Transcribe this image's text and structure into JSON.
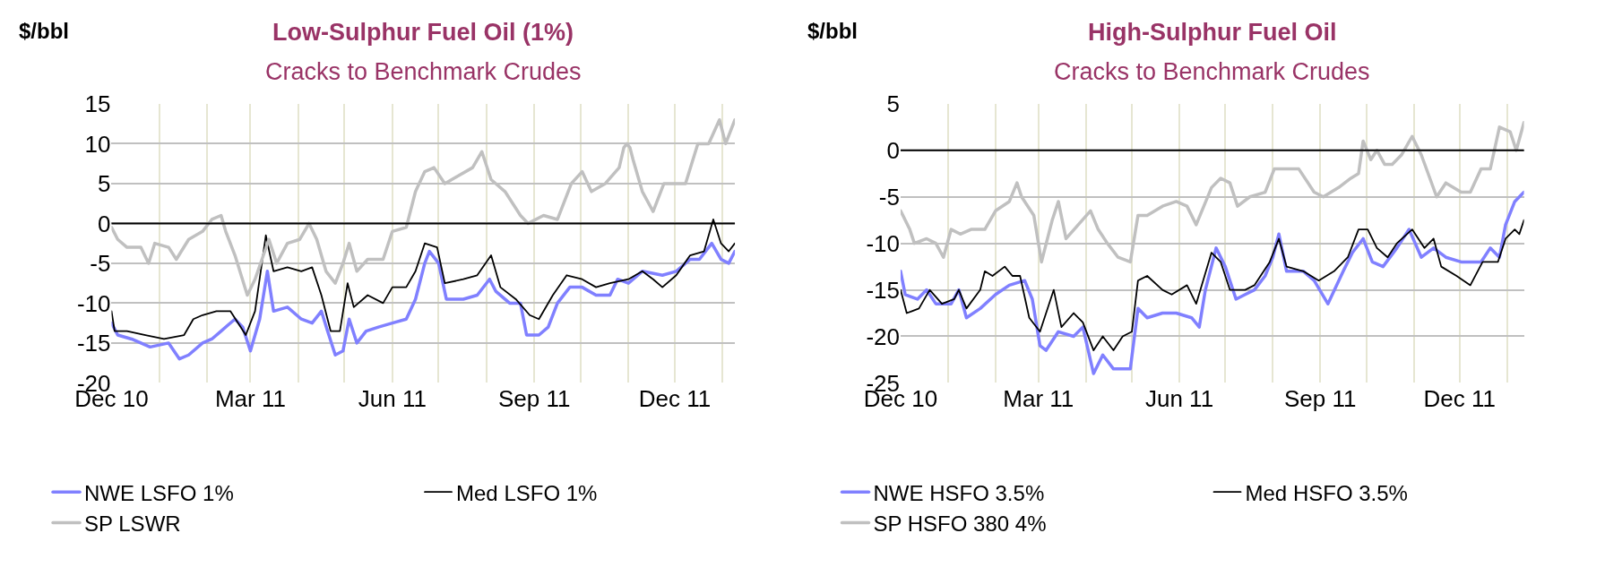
{
  "chart_data": [
    {
      "type": "line",
      "title": "Low-Sulphur Fuel Oil (1%)",
      "subtitle": "Cracks to Benchmark Crudes",
      "ylabel": "$/bbl",
      "xlim": [
        "2010-12-01",
        "2012-01-09"
      ],
      "xticks": [
        {
          "value": "2010-12-01",
          "label": "Dec 10"
        },
        {
          "value": "2011-01-01",
          "label": null
        },
        {
          "value": "2011-02-01",
          "label": null
        },
        {
          "value": "2011-03-01",
          "label": "Mar 11"
        },
        {
          "value": "2011-04-01",
          "label": null
        },
        {
          "value": "2011-05-01",
          "label": null
        },
        {
          "value": "2011-06-01",
          "label": "Jun 11"
        },
        {
          "value": "2011-07-01",
          "label": null
        },
        {
          "value": "2011-08-01",
          "label": null
        },
        {
          "value": "2011-09-01",
          "label": "Sep 11"
        },
        {
          "value": "2011-10-01",
          "label": null
        },
        {
          "value": "2011-11-01",
          "label": null
        },
        {
          "value": "2011-12-01",
          "label": "Dec 11"
        },
        {
          "value": "2012-01-01",
          "label": null
        }
      ],
      "ylim": [
        -20,
        15
      ],
      "yticks": [
        -20,
        -15,
        -10,
        -5,
        0,
        5,
        10,
        15
      ],
      "grid": true,
      "legend": "bottom",
      "ref_lines": [
        {
          "axis": "y",
          "value": 0,
          "color": "#000000"
        }
      ],
      "series": [
        {
          "name": "NWE LSFO 1%",
          "color": "#8080ff",
          "x": [
            "2010-12-01",
            "2010-12-05",
            "2010-12-14",
            "2010-12-26",
            "2011-01-07",
            "2011-01-14",
            "2011-01-20",
            "2011-01-29",
            "2011-02-04",
            "2011-02-10",
            "2011-02-19",
            "2011-02-24",
            "2011-03-01",
            "2011-03-07",
            "2011-03-12",
            "2011-03-16",
            "2011-03-25",
            "2011-04-03",
            "2011-04-10",
            "2011-04-16",
            "2011-04-20",
            "2011-04-25",
            "2011-04-30",
            "2011-05-04",
            "2011-05-09",
            "2011-05-15",
            "2011-05-23",
            "2011-06-01",
            "2011-06-10",
            "2011-06-16",
            "2011-06-22",
            "2011-06-25",
            "2011-07-01",
            "2011-07-06",
            "2011-07-17",
            "2011-07-26",
            "2011-08-03",
            "2011-08-07",
            "2011-08-16",
            "2011-08-23",
            "2011-08-27",
            "2011-09-04",
            "2011-09-10",
            "2011-09-16",
            "2011-09-24",
            "2011-10-02",
            "2011-10-11",
            "2011-10-20",
            "2011-10-25",
            "2011-11-01",
            "2011-11-10",
            "2011-11-23",
            "2011-12-02",
            "2011-12-11",
            "2011-12-17",
            "2011-12-25",
            "2011-12-31",
            "2012-01-05",
            "2012-01-09"
          ],
          "values": [
            -12.5,
            -14,
            -14.5,
            -15.5,
            -15,
            -17,
            -16.5,
            -15,
            -14.5,
            -13.5,
            -12,
            -13,
            -16,
            -12,
            -6,
            -11,
            -10.5,
            -12,
            -12.5,
            -11,
            -13.5,
            -16.5,
            -16,
            -12,
            -15,
            -13.5,
            -13,
            -12.5,
            -12,
            -9.5,
            -5,
            -3.5,
            -5,
            -9.5,
            -9.5,
            -9,
            -7,
            -8.5,
            -10,
            -10,
            -14,
            -14,
            -13,
            -10,
            -8,
            -8,
            -9,
            -9,
            -7,
            -7.5,
            -6,
            -6.5,
            -6,
            -4.5,
            -4.5,
            -2.5,
            -4.5,
            -5,
            -3.5
          ]
        },
        {
          "name": "Med LSFO 1%",
          "color": "#000000",
          "x": [
            "2010-12-01",
            "2010-12-03",
            "2010-12-11",
            "2010-12-23",
            "2011-01-04",
            "2011-01-17",
            "2011-01-23",
            "2011-01-29",
            "2011-02-07",
            "2011-02-16",
            "2011-02-26",
            "2011-03-04",
            "2011-03-11",
            "2011-03-16",
            "2011-03-25",
            "2011-04-03",
            "2011-04-10",
            "2011-04-16",
            "2011-04-22",
            "2011-04-28",
            "2011-05-03",
            "2011-05-07",
            "2011-05-16",
            "2011-05-26",
            "2011-06-01",
            "2011-06-10",
            "2011-06-16",
            "2011-06-22",
            "2011-06-30",
            "2011-07-05",
            "2011-07-17",
            "2011-07-26",
            "2011-08-04",
            "2011-08-10",
            "2011-08-20",
            "2011-08-29",
            "2011-09-04",
            "2011-09-13",
            "2011-09-22",
            "2011-10-02",
            "2011-10-11",
            "2011-10-20",
            "2011-11-01",
            "2011-11-10",
            "2011-11-17",
            "2011-11-23",
            "2011-12-02",
            "2011-12-11",
            "2011-12-20",
            "2011-12-26",
            "2011-12-31",
            "2012-01-05",
            "2012-01-09"
          ],
          "values": [
            -11,
            -13.5,
            -13.5,
            -14,
            -14.5,
            -14,
            -12,
            -11.5,
            -11,
            -11,
            -14,
            -11,
            -1.5,
            -6,
            -5.5,
            -6,
            -5.5,
            -9,
            -13.5,
            -13.5,
            -7.5,
            -10.5,
            -9,
            -10,
            -8,
            -8,
            -6,
            -2.5,
            -3,
            -7.5,
            -7,
            -6.5,
            -4,
            -8,
            -9.5,
            -11.5,
            -12,
            -9,
            -6.5,
            -7,
            -8,
            -7.5,
            -7,
            -6,
            -7,
            -8,
            -6.5,
            -4,
            -3.5,
            0.5,
            -2.5,
            -3.5,
            -2.5
          ]
        },
        {
          "name": "SP LSWR",
          "color": "#c0c0c0",
          "x": [
            "2010-12-01",
            "2010-12-05",
            "2010-12-11",
            "2010-12-20",
            "2010-12-25",
            "2010-12-29",
            "2011-01-07",
            "2011-01-12",
            "2011-01-20",
            "2011-01-29",
            "2011-02-04",
            "2011-02-10",
            "2011-02-13",
            "2011-02-19",
            "2011-02-27",
            "2011-03-04",
            "2011-03-13",
            "2011-03-18",
            "2011-03-25",
            "2011-04-02",
            "2011-04-08",
            "2011-04-13",
            "2011-04-19",
            "2011-04-25",
            "2011-04-30",
            "2011-05-04",
            "2011-05-09",
            "2011-05-16",
            "2011-05-26",
            "2011-06-01",
            "2011-06-10",
            "2011-06-16",
            "2011-06-22",
            "2011-06-28",
            "2011-07-05",
            "2011-07-14",
            "2011-07-23",
            "2011-07-29",
            "2011-08-04",
            "2011-08-13",
            "2011-08-23",
            "2011-08-28",
            "2011-09-07",
            "2011-09-16",
            "2011-09-25",
            "2011-10-02",
            "2011-10-08",
            "2011-10-17",
            "2011-10-26",
            "2011-10-29",
            "2011-10-31",
            "2011-11-02",
            "2011-11-04",
            "2011-11-10",
            "2011-11-17",
            "2011-11-24",
            "2011-12-02",
            "2011-12-08",
            "2011-12-16",
            "2011-12-23",
            "2011-12-30",
            "2012-01-03",
            "2012-01-09"
          ],
          "values": [
            -0.5,
            -2,
            -3,
            -3,
            -5,
            -2.5,
            -3,
            -4.5,
            -2,
            -1,
            0.5,
            1,
            -1,
            -4,
            -9,
            -7,
            -2,
            -5,
            -2.5,
            -2,
            0,
            -2,
            -6,
            -7.5,
            -5,
            -2.5,
            -6,
            -4.5,
            -4.5,
            -1,
            -0.5,
            4,
            6.5,
            7,
            5,
            6,
            7,
            9,
            5.5,
            4,
            1,
            0,
            1,
            0.5,
            5,
            6.5,
            4,
            5,
            7,
            9.5,
            10,
            9.5,
            8,
            4,
            1.5,
            5,
            5,
            5,
            10,
            10,
            13,
            10,
            13
          ]
        }
      ]
    },
    {
      "type": "line",
      "title": "High-Sulphur Fuel Oil",
      "subtitle": "Cracks to Benchmark Crudes",
      "ylabel": "$/bbl",
      "xlim": [
        "2010-12-01",
        "2012-01-12"
      ],
      "xticks": [
        {
          "value": "2010-12-01",
          "label": "Dec 10"
        },
        {
          "value": "2011-01-01",
          "label": null
        },
        {
          "value": "2011-02-01",
          "label": null
        },
        {
          "value": "2011-03-01",
          "label": "Mar 11"
        },
        {
          "value": "2011-04-01",
          "label": null
        },
        {
          "value": "2011-05-01",
          "label": null
        },
        {
          "value": "2011-06-01",
          "label": "Jun 11"
        },
        {
          "value": "2011-07-01",
          "label": null
        },
        {
          "value": "2011-08-01",
          "label": null
        },
        {
          "value": "2011-09-01",
          "label": "Sep 11"
        },
        {
          "value": "2011-10-01",
          "label": null
        },
        {
          "value": "2011-11-01",
          "label": null
        },
        {
          "value": "2011-12-01",
          "label": "Dec 11"
        },
        {
          "value": "2012-01-01",
          "label": null
        }
      ],
      "ylim": [
        -25,
        5
      ],
      "yticks": [
        -25,
        -20,
        -15,
        -10,
        -5,
        0,
        5
      ],
      "grid": true,
      "legend": "bottom",
      "ref_lines": [
        {
          "axis": "y",
          "value": 0,
          "color": "#000000"
        }
      ],
      "series": [
        {
          "name": "NWE HSFO 3.5%",
          "color": "#8080ff",
          "x": [
            "2010-12-01",
            "2010-12-04",
            "2010-12-12",
            "2010-12-18",
            "2010-12-24",
            "2011-01-03",
            "2011-01-08",
            "2011-01-13",
            "2011-01-22",
            "2011-02-01",
            "2011-02-10",
            "2011-02-20",
            "2011-02-25",
            "2011-03-02",
            "2011-03-06",
            "2011-03-14",
            "2011-03-24",
            "2011-03-30",
            "2011-04-06",
            "2011-04-12",
            "2011-04-19",
            "2011-04-30",
            "2011-05-05",
            "2011-05-11",
            "2011-05-21",
            "2011-05-30",
            "2011-06-09",
            "2011-06-14",
            "2011-06-18",
            "2011-06-25",
            "2011-07-01",
            "2011-07-08",
            "2011-07-14",
            "2011-07-20",
            "2011-07-27",
            "2011-08-01",
            "2011-08-05",
            "2011-08-10",
            "2011-08-21",
            "2011-08-28",
            "2011-09-06",
            "2011-09-16",
            "2011-09-22",
            "2011-09-29",
            "2011-10-05",
            "2011-10-12",
            "2011-10-21",
            "2011-10-29",
            "2011-11-06",
            "2011-11-14",
            "2011-11-22",
            "2011-12-02",
            "2011-12-15",
            "2011-12-21",
            "2011-12-27",
            "2011-12-31",
            "2012-01-06",
            "2012-01-12"
          ],
          "values": [
            -13,
            -15.5,
            -16,
            -15,
            -16.5,
            -16.5,
            -15,
            -18,
            -17,
            -15.5,
            -14.5,
            -14,
            -16,
            -21,
            -21.5,
            -19.5,
            -20,
            -19,
            -24,
            -22,
            -23.5,
            -23.5,
            -17,
            -18,
            -17.5,
            -17.5,
            -18,
            -19,
            -15,
            -10.5,
            -12.5,
            -16,
            -15.5,
            -15,
            -13.5,
            -11.5,
            -9,
            -13,
            -13,
            -14,
            -16.5,
            -13,
            -11,
            -9.5,
            -12,
            -12.5,
            -10.5,
            -8.5,
            -11.5,
            -10.5,
            -11.5,
            -12,
            -12,
            -10.5,
            -11.5,
            -8,
            -5.5,
            -4.5
          ]
        },
        {
          "name": "Med HSFO 3.5%",
          "color": "#000000",
          "x": [
            "2010-12-01",
            "2010-12-05",
            "2010-12-13",
            "2010-12-20",
            "2010-12-28",
            "2011-01-05",
            "2011-01-08",
            "2011-01-13",
            "2011-01-22",
            "2011-01-25",
            "2011-01-30",
            "2011-02-07",
            "2011-02-12",
            "2011-02-17",
            "2011-02-23",
            "2011-03-02",
            "2011-03-11",
            "2011-03-16",
            "2011-03-24",
            "2011-03-30",
            "2011-04-06",
            "2011-04-12",
            "2011-04-19",
            "2011-04-25",
            "2011-05-01",
            "2011-05-05",
            "2011-05-11",
            "2011-05-21",
            "2011-05-27",
            "2011-06-06",
            "2011-06-12",
            "2011-06-22",
            "2011-06-28",
            "2011-07-04",
            "2011-07-14",
            "2011-07-20",
            "2011-07-30",
            "2011-08-05",
            "2011-08-10",
            "2011-08-21",
            "2011-08-31",
            "2011-09-10",
            "2011-09-19",
            "2011-09-26",
            "2011-10-02",
            "2011-10-08",
            "2011-10-15",
            "2011-10-21",
            "2011-10-31",
            "2011-11-08",
            "2011-11-14",
            "2011-11-19",
            "2011-11-29",
            "2011-12-08",
            "2011-12-16",
            "2011-12-26",
            "2011-12-31",
            "2012-01-06",
            "2012-01-09",
            "2012-01-12"
          ],
          "values": [
            -15,
            -17.5,
            -17,
            -15,
            -16.5,
            -16,
            -15,
            -17,
            -15,
            -13,
            -13.5,
            -12.5,
            -13.5,
            -13.5,
            -18,
            -19.5,
            -15,
            -19,
            -17.5,
            -18.5,
            -21.5,
            -20,
            -21.5,
            -20,
            -19.5,
            -14,
            -13.5,
            -15,
            -15.5,
            -14.5,
            -16.5,
            -11,
            -12,
            -15,
            -15,
            -14.5,
            -12,
            -9.5,
            -12.5,
            -13,
            -14,
            -13,
            -11.5,
            -8.5,
            -8.5,
            -10.5,
            -11.5,
            -10,
            -8.5,
            -10.5,
            -9.5,
            -12.5,
            -13.5,
            -14.5,
            -12,
            -12,
            -9.5,
            -8.5,
            -9,
            -7.5
          ]
        },
        {
          "name": "SP HSFO 380 4%",
          "color": "#c0c0c0",
          "x": [
            "2010-12-01",
            "2010-12-07",
            "2010-12-10",
            "2010-12-18",
            "2010-12-24",
            "2010-12-29",
            "2011-01-03",
            "2011-01-09",
            "2011-01-16",
            "2011-01-25",
            "2011-02-01",
            "2011-02-10",
            "2011-02-15",
            "2011-02-18",
            "2011-02-26",
            "2011-03-03",
            "2011-03-10",
            "2011-03-14",
            "2011-03-19",
            "2011-03-27",
            "2011-04-04",
            "2011-04-09",
            "2011-04-15",
            "2011-04-22",
            "2011-04-30",
            "2011-05-05",
            "2011-05-11",
            "2011-05-21",
            "2011-05-30",
            "2011-06-06",
            "2011-06-12",
            "2011-06-22",
            "2011-06-28",
            "2011-07-04",
            "2011-07-09",
            "2011-07-17",
            "2011-07-27",
            "2011-08-02",
            "2011-08-10",
            "2011-08-18",
            "2011-08-28",
            "2011-09-03",
            "2011-09-13",
            "2011-09-21",
            "2011-09-26",
            "2011-09-29",
            "2011-10-04",
            "2011-10-08",
            "2011-10-13",
            "2011-10-18",
            "2011-10-24",
            "2011-10-31",
            "2011-11-06",
            "2011-11-16",
            "2011-11-22",
            "2011-12-02",
            "2011-12-08",
            "2011-12-15",
            "2011-12-21",
            "2011-12-27",
            "2012-01-03",
            "2012-01-07",
            "2012-01-12"
          ],
          "values": [
            -6.5,
            -8.5,
            -10,
            -9.5,
            -10,
            -11.5,
            -8.5,
            -9,
            -8.5,
            -8.5,
            -6.5,
            -5.5,
            -3.5,
            -5,
            -7,
            -12,
            -7.5,
            -5.5,
            -9.5,
            -8,
            -6.5,
            -8.5,
            -10,
            -11.5,
            -12,
            -7,
            -7,
            -6,
            -5.5,
            -6,
            -8,
            -4,
            -3,
            -3.5,
            -6,
            -5,
            -4.5,
            -2,
            -2,
            -2,
            -4.5,
            -5,
            -4,
            -3,
            -2.5,
            1,
            -1,
            0,
            -1.5,
            -1.5,
            -0.5,
            1.5,
            -0.5,
            -5,
            -3.5,
            -4.5,
            -4.5,
            -2,
            -2,
            2.5,
            2,
            0,
            3
          ]
        }
      ]
    }
  ]
}
